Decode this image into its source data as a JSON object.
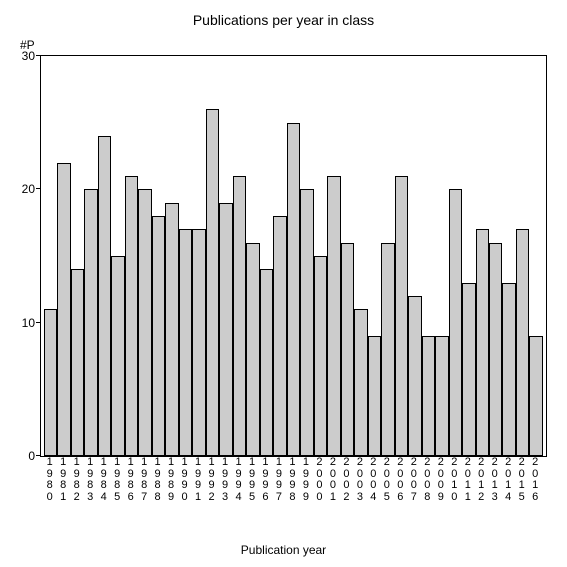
{
  "chart": {
    "type": "bar",
    "title": "Publications per year in class",
    "y_axis_label": "#P",
    "x_axis_label": "Publication year",
    "ylim": [
      0,
      30
    ],
    "yticks": [
      0,
      10,
      20,
      30
    ],
    "categories": [
      "1980",
      "1981",
      "1982",
      "1983",
      "1984",
      "1985",
      "1986",
      "1987",
      "1988",
      "1989",
      "1990",
      "1991",
      "1992",
      "1993",
      "1994",
      "1995",
      "1996",
      "1997",
      "1998",
      "1999",
      "2000",
      "2001",
      "2002",
      "2003",
      "2004",
      "2005",
      "2006",
      "2007",
      "2008",
      "2009",
      "2010",
      "2011",
      "2012",
      "2013",
      "2014",
      "2015",
      "2016"
    ],
    "values": [
      11,
      22,
      14,
      20,
      24,
      15,
      21,
      20,
      18,
      19,
      17,
      17,
      26,
      19,
      21,
      16,
      14,
      18,
      25,
      20,
      15,
      21,
      16,
      11,
      9,
      16,
      21,
      12,
      9,
      9,
      20,
      13,
      17,
      16,
      13,
      17,
      9
    ],
    "bar_fill": "#cccccc",
    "bar_border": "#000000",
    "bar_border_width": 1,
    "background_color": "#ffffff",
    "axis_color": "#000000",
    "title_fontsize": 14,
    "label_fontsize": 12,
    "tick_fontsize": 12,
    "xlabel_fontsize": 11
  }
}
